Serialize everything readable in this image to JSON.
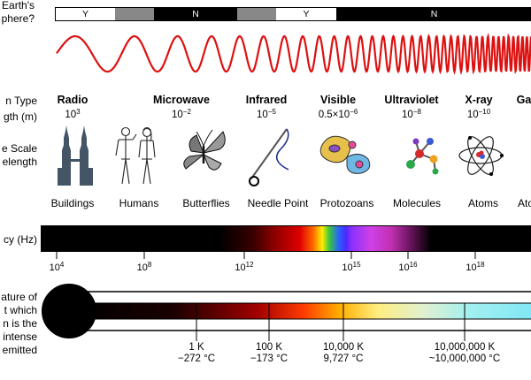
{
  "left_labels": {
    "atmosphere": [
      "Earth's",
      "phere?"
    ],
    "type": "n Type",
    "wavelength": "gth (m)",
    "scale": [
      "e Scale",
      "elength"
    ],
    "frequency": "cy (Hz)",
    "temperature": [
      "ature of",
      "t which",
      "n is the",
      "intense",
      "emitted"
    ]
  },
  "atmosphere_bar": [
    {
      "label": "Y",
      "fill": "#ffffff",
      "text": "#000000"
    },
    {
      "label": "",
      "fill": "#888888",
      "text": "#000000"
    },
    {
      "label": "N",
      "fill": "#000000",
      "text": "#ffffff"
    },
    {
      "label": "",
      "fill": "#888888",
      "text": "#000000"
    },
    {
      "label": "Y",
      "fill": "#ffffff",
      "text": "#000000"
    },
    {
      "label": "N",
      "fill": "#000000",
      "text": "#ffffff"
    }
  ],
  "bands": [
    {
      "name": "Radio",
      "wl_base": "10",
      "wl_exp": "3"
    },
    {
      "name": "Microwave",
      "wl_base": "10",
      "wl_exp": "−2"
    },
    {
      "name": "Infrared",
      "wl_base": "10",
      "wl_exp": "−5"
    },
    {
      "name": "Visible",
      "wl_base": "0.5×10",
      "wl_exp": "−6"
    },
    {
      "name": "Ultraviolet",
      "wl_base": "10",
      "wl_exp": "−8"
    },
    {
      "name": "X-ray",
      "wl_base": "10",
      "wl_exp": "−10"
    },
    {
      "name": "Ga",
      "wl_base": "",
      "wl_exp": ""
    }
  ],
  "scale_objects": [
    "Buildings",
    "Humans",
    "Butterflies",
    "Needle Point",
    "Protozoans",
    "Molecules",
    "Atoms",
    "Ato"
  ],
  "frequency_ticks": [
    {
      "base": "10",
      "exp": "4"
    },
    {
      "base": "10",
      "exp": "8"
    },
    {
      "base": "10",
      "exp": "12"
    },
    {
      "base": "10",
      "exp": "15"
    },
    {
      "base": "10",
      "exp": "16"
    },
    {
      "base": "10",
      "exp": "18"
    }
  ],
  "temperature_ticks": [
    {
      "kelvin": "1 K",
      "celsius": "−272 °C"
    },
    {
      "kelvin": "100 K",
      "celsius": "−173 °C"
    },
    {
      "kelvin": "10,000 K",
      "celsius": "9,727 °C"
    },
    {
      "kelvin": "10,000,000 K",
      "celsius": "~10,000,000 °C"
    }
  ],
  "colors": {
    "wave": "#dd1111",
    "ink": "#000000",
    "gray": "#888888"
  }
}
